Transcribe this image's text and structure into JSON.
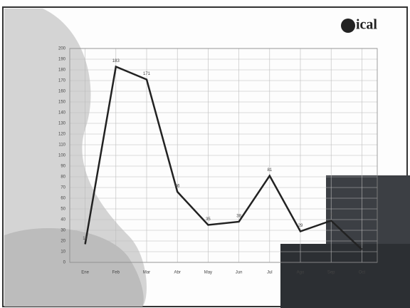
{
  "logo": "ical",
  "chart_data": {
    "type": "line",
    "categories": [
      "Ene",
      "Feb",
      "Mar",
      "Abr",
      "May",
      "Jun",
      "Jul",
      "Ago",
      "Sep",
      "Oct"
    ],
    "values": [
      17,
      183,
      171,
      66,
      35,
      38,
      81,
      29,
      39,
      12
    ],
    "color": "#222222",
    "ylim": [
      0,
      200
    ],
    "yticks": [
      0,
      10,
      20,
      30,
      40,
      50,
      60,
      70,
      80,
      90,
      100,
      110,
      120,
      130,
      140,
      150,
      160,
      170,
      180,
      190,
      200
    ],
    "grid": true
  }
}
